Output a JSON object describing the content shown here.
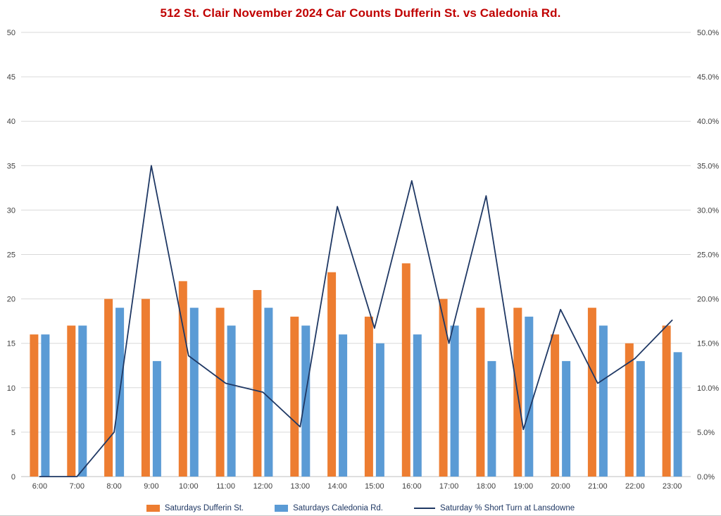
{
  "colors": {
    "title": "#C00000",
    "grid": "#D9D9D9",
    "axis_line": "#BFBFBF",
    "axis_text": "#404040",
    "legend_text": "#1F3864"
  },
  "chart_data": {
    "type": "bar",
    "title": "512 St. Clair November 2024 Car Counts Dufferin St. vs Caledonia Rd.",
    "categories": [
      "6:00",
      "7:00",
      "8:00",
      "9:00",
      "10:00",
      "11:00",
      "12:00",
      "13:00",
      "14:00",
      "15:00",
      "16:00",
      "17:00",
      "18:00",
      "19:00",
      "20:00",
      "21:00",
      "22:00",
      "23:00"
    ],
    "series": [
      {
        "name": "Saturdays Dufferin St.",
        "type": "bar",
        "axis": "left",
        "color": "#ED7D31",
        "values": [
          16,
          17,
          20,
          20,
          22,
          19,
          21,
          18,
          23,
          18,
          24,
          20,
          19,
          19,
          16,
          19,
          15,
          17
        ]
      },
      {
        "name": "Saturdays Caledonia Rd.",
        "type": "bar",
        "axis": "left",
        "color": "#5B9BD5",
        "values": [
          16,
          17,
          19,
          13,
          19,
          17,
          19,
          17,
          16,
          15,
          16,
          17,
          13,
          18,
          13,
          17,
          13,
          14
        ]
      },
      {
        "name": "Saturday % Short Turn at Lansdowne",
        "type": "line",
        "axis": "right",
        "color": "#1F3864",
        "values": [
          0.0,
          0.0,
          5.0,
          35.0,
          13.6,
          10.5,
          9.5,
          5.6,
          30.4,
          16.7,
          33.3,
          15.0,
          31.6,
          5.3,
          18.8,
          10.5,
          13.3,
          17.6
        ]
      }
    ],
    "left_axis": {
      "min": 0,
      "max": 50,
      "step": 5,
      "ticks": [
        "0",
        "5",
        "10",
        "15",
        "20",
        "25",
        "30",
        "35",
        "40",
        "45",
        "50"
      ]
    },
    "right_axis": {
      "min": 0,
      "max": 50,
      "step": 5,
      "unit": "%",
      "ticks": [
        "0.0%",
        "5.0%",
        "10.0%",
        "15.0%",
        "20.0%",
        "25.0%",
        "30.0%",
        "35.0%",
        "40.0%",
        "45.0%",
        "50.0%"
      ]
    },
    "grid": true,
    "legend_position": "bottom"
  }
}
